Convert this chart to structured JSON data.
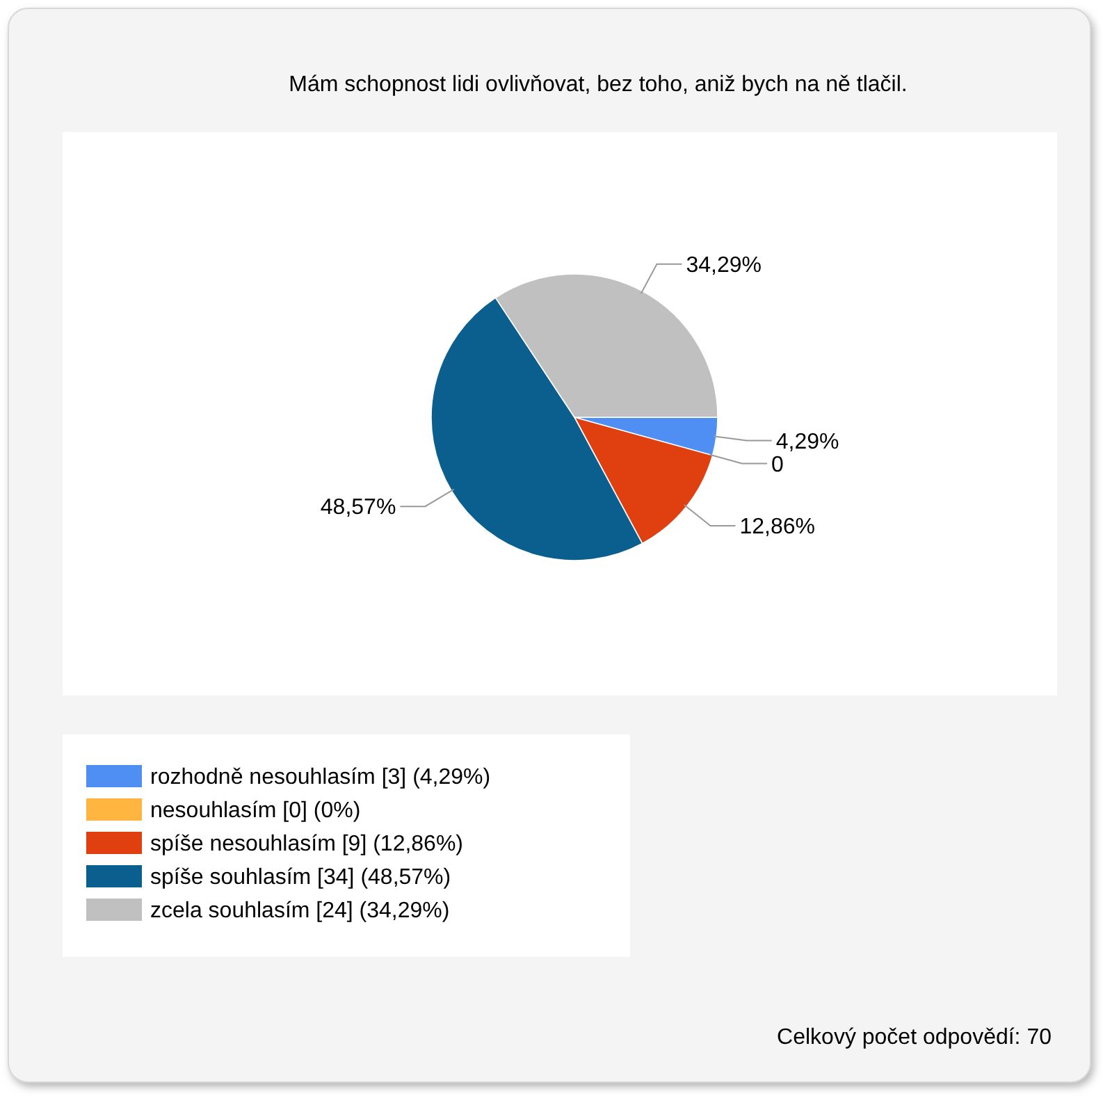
{
  "chart_data": {
    "type": "pie",
    "title": "Mám schopnost lidi ovlivňovat, bez toho, aniž bych na ně tlačil.",
    "categories": [
      "rozhodně nesouhlasím [3] (4,29%)",
      "nesouhlasím [0] (0%)",
      "spíše nesouhlasím [9] (12,86%)",
      "spíše souhlasím [34] (48,57%)",
      "zcela souhlasím [24] (34,29%)"
    ],
    "values": [
      4.29,
      0,
      12.86,
      48.57,
      34.29
    ],
    "value_labels": [
      "4,29%",
      "0",
      "12,86%",
      "48,57%",
      "34,29%"
    ],
    "colors": [
      "#4f8ff3",
      "#ffb540",
      "#e04010",
      "#0a5f8f",
      "#c0c0c0"
    ],
    "legend": "bottom left",
    "annotations": [
      "Celkový počet odpovědí: 70"
    ]
  }
}
